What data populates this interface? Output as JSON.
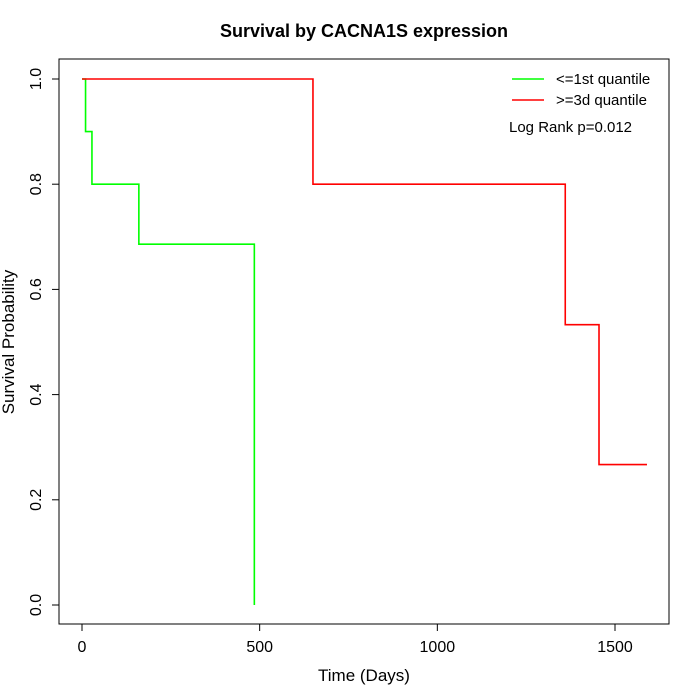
{
  "chart_data": {
    "type": "line",
    "step": true,
    "title": "Survival by CACNA1S expression",
    "xlabel": "Time (Days)",
    "ylabel": "Survival Probability",
    "xlim": [
      0,
      1650
    ],
    "ylim": [
      0,
      1.0
    ],
    "xticks": [
      0,
      500,
      1000,
      1500
    ],
    "yticks": [
      0.0,
      0.2,
      0.4,
      0.6,
      0.8,
      1.0
    ],
    "xtick_labels": [
      "0",
      "500",
      "1000",
      "1500"
    ],
    "ytick_labels": [
      "0.0",
      "0.2",
      "0.4",
      "0.6",
      "0.8",
      "1.0"
    ],
    "legend_position": "top-right",
    "grid": false,
    "annotation": "Log Rank p=0.012",
    "series": [
      {
        "name": "<=1st quantile",
        "color": "#00ff00",
        "x": [
          0,
          10,
          28,
          160,
          485,
          485
        ],
        "y": [
          1.0,
          0.9,
          0.8,
          0.686,
          0.686,
          0.0
        ]
      },
      {
        "name": ">=3d quantile",
        "color": "#ff0000",
        "x": [
          0,
          650,
          1360,
          1455,
          1590
        ],
        "y": [
          1.0,
          0.8,
          0.533,
          0.267,
          0.267
        ]
      }
    ]
  }
}
